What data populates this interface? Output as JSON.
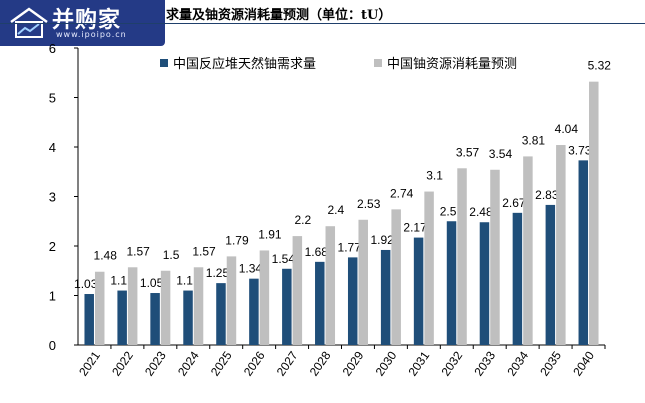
{
  "watermark": {
    "brand": "并购家",
    "url": "www.ipoipo.cn"
  },
  "chart_data": {
    "type": "bar",
    "title": "求量及铀资源消耗量预测（单位：tU）",
    "categories": [
      "2021",
      "2022",
      "2023",
      "2024",
      "2025",
      "2026",
      "2027",
      "2028",
      "2029",
      "2030",
      "2031",
      "2032",
      "2033",
      "2034",
      "2035",
      "2040"
    ],
    "series": [
      {
        "name": "中国反应堆天然铀需求量",
        "color": "#1f4e79",
        "values": [
          1.03,
          1.1,
          1.05,
          1.1,
          1.25,
          1.34,
          1.54,
          1.68,
          1.77,
          1.92,
          2.17,
          2.5,
          2.48,
          2.67,
          2.83,
          3.73
        ]
      },
      {
        "name": "中国铀资源消耗量预测",
        "color": "#bfbfbf",
        "values": [
          1.48,
          1.57,
          1.5,
          1.57,
          1.79,
          1.91,
          2.2,
          2.4,
          2.53,
          2.74,
          3.1,
          3.57,
          3.54,
          3.81,
          4.04,
          5.32
        ]
      }
    ],
    "xlabel": "",
    "ylabel": "",
    "ylim": [
      0,
      6
    ],
    "yticks": [
      0,
      1,
      2,
      3,
      4,
      5,
      6
    ],
    "legend": "top",
    "grid": false
  }
}
